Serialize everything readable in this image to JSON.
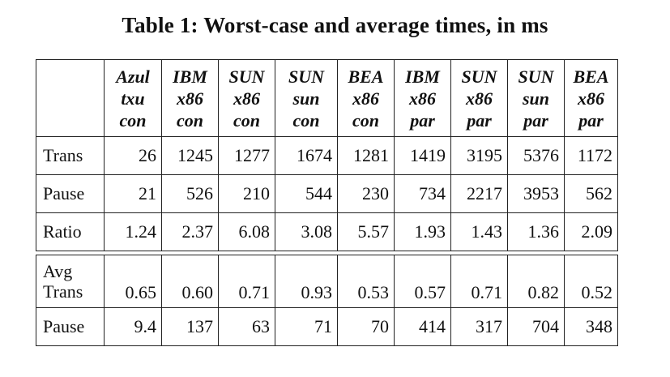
{
  "title": "Table 1: Worst-case and average times, in ms",
  "columns": [
    {
      "line1": "Azul",
      "line2": "txu",
      "line3": "con"
    },
    {
      "line1": "IBM",
      "line2": "x86",
      "line3": "con"
    },
    {
      "line1": "SUN",
      "line2": "x86",
      "line3": "con"
    },
    {
      "line1": "SUN",
      "line2": "sun",
      "line3": "con"
    },
    {
      "line1": "BEA",
      "line2": "x86",
      "line3": "con"
    },
    {
      "line1": "IBM",
      "line2": "x86",
      "line3": "par"
    },
    {
      "line1": "SUN",
      "line2": "x86",
      "line3": "par"
    },
    {
      "line1": "SUN",
      "line2": "sun",
      "line3": "par"
    },
    {
      "line1": "BEA",
      "line2": "x86",
      "line3": "par"
    }
  ],
  "worst_case": [
    {
      "label": "Trans",
      "values": [
        "26",
        "1245",
        "1277",
        "1674",
        "1281",
        "1419",
        "3195",
        "5376",
        "1172"
      ]
    },
    {
      "label": "Pause",
      "values": [
        "21",
        "526",
        "210",
        "544",
        "230",
        "734",
        "2217",
        "3953",
        "562"
      ]
    },
    {
      "label": "Ratio",
      "values": [
        "1.24",
        "2.37",
        "6.08",
        "3.08",
        "5.57",
        "1.93",
        "1.43",
        "1.36",
        "2.09"
      ]
    }
  ],
  "average": [
    {
      "label_line1": "Avg",
      "label_line2": "Trans",
      "values": [
        "0.65",
        "0.60",
        "0.71",
        "0.93",
        "0.53",
        "0.57",
        "0.71",
        "0.82",
        "0.52"
      ]
    },
    {
      "label": "Pause",
      "values": [
        "9.4",
        "137",
        "63",
        "71",
        "70",
        "414",
        "317",
        "704",
        "348"
      ]
    }
  ]
}
